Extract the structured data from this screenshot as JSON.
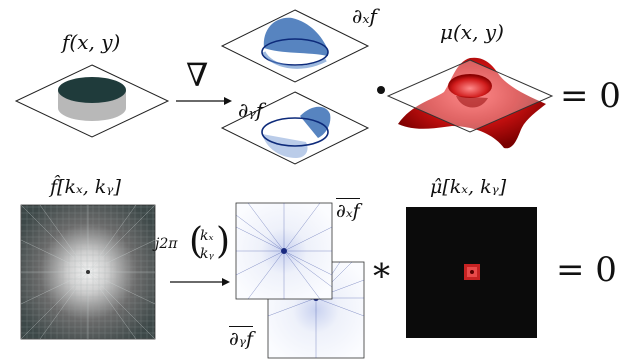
{
  "top_row": {
    "input_label": "f(x, y)",
    "operator": "∇",
    "dx_label": "∂ₓf",
    "dy_label": "∂ᵧf",
    "dot_operator": "•",
    "mu_label": "μ(x, y)",
    "equals": "= 0"
  },
  "bottom_row": {
    "input_label": "f̂[kₓ, kᵧ]",
    "multiplier_label": "j2π",
    "kx": "kₓ",
    "ky": "kᵧ",
    "dx_label": "∂ₓf",
    "dy_label": "∂ᵧf",
    "conv_operator": "∗",
    "mu_label": "μ̂[kₓ, kᵧ]",
    "equals": "= 0"
  },
  "colors": {
    "disk_top": "#1f3b3b",
    "disk_side": "#b8b8b8",
    "gradient_blue": "#3a6fb5",
    "mu_red": "#cc1111",
    "spectrum_dark": "#0b0b0b"
  }
}
